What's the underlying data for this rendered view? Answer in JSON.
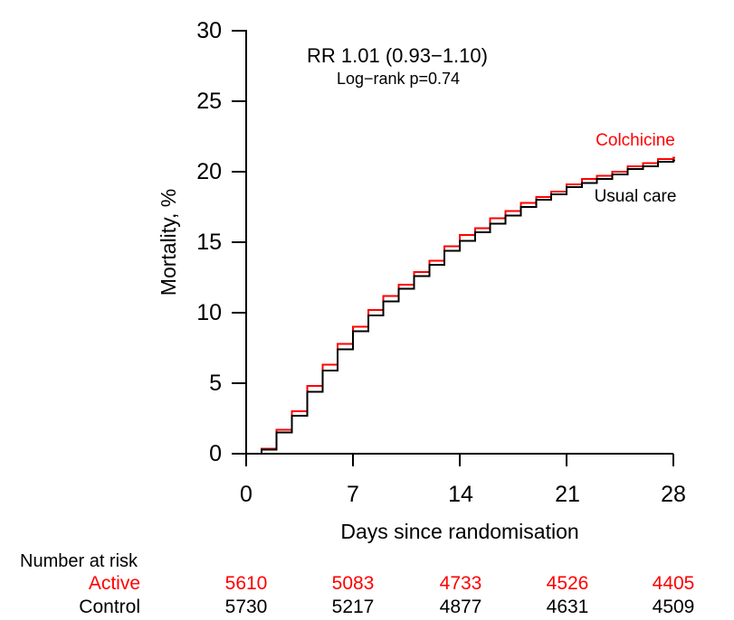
{
  "annotation": {
    "rr": "RR 1.01 (0.93−1.10)",
    "logrank": "Log−rank p=0.74"
  },
  "axis": {
    "x_title": "Days since randomisation",
    "y_title": "Mortality, %"
  },
  "x_tick_labels": [
    "0",
    "7",
    "14",
    "21",
    "28"
  ],
  "y_tick_labels": [
    "30",
    "25",
    "20",
    "15",
    "10",
    "5",
    "0"
  ],
  "curve_labels": {
    "colchicine": "Colchicine",
    "usual_care": "Usual care"
  },
  "colors": {
    "colchicine": "#ff0000",
    "usual_care": "#000000",
    "axis": "#000000"
  },
  "risk_table": {
    "title": "Number at risk",
    "rows": [
      {
        "label": "Active",
        "color": "#ff0000",
        "values": [
          "5610",
          "5083",
          "4733",
          "4526",
          "4405"
        ]
      },
      {
        "label": "Control",
        "color": "#000000",
        "values": [
          "5730",
          "5217",
          "4877",
          "4631",
          "4509"
        ]
      }
    ]
  },
  "chart_data": {
    "type": "line",
    "subtype": "step",
    "title": "",
    "xlabel": "Days since randomisation",
    "ylabel": "Mortality, %",
    "xlim": [
      0,
      28
    ],
    "ylim": [
      0,
      30
    ],
    "x_ticks": [
      0,
      7,
      14,
      21,
      28
    ],
    "y_ticks": [
      0,
      5,
      10,
      15,
      20,
      25,
      30
    ],
    "grid": false,
    "annotations": [
      "RR 1.01 (0.93−1.10)",
      "Log−rank p=0.74"
    ],
    "x": [
      0,
      1,
      2,
      3,
      4,
      5,
      6,
      7,
      8,
      9,
      10,
      11,
      12,
      13,
      14,
      15,
      16,
      17,
      18,
      19,
      20,
      21,
      22,
      23,
      24,
      25,
      26,
      27,
      28
    ],
    "series": [
      {
        "name": "Colchicine",
        "color": "#ff0000",
        "values": [
          0,
          0.35,
          1.7,
          3.0,
          4.8,
          6.3,
          7.8,
          9.0,
          10.2,
          11.2,
          12.0,
          12.9,
          13.7,
          14.7,
          15.5,
          16.0,
          16.7,
          17.2,
          17.8,
          18.2,
          18.6,
          19.1,
          19.5,
          19.7,
          20.0,
          20.4,
          20.6,
          20.9,
          21.0
        ]
      },
      {
        "name": "Usual care",
        "color": "#000000",
        "values": [
          0,
          0.3,
          1.5,
          2.7,
          4.4,
          5.9,
          7.4,
          8.7,
          9.8,
          10.8,
          11.7,
          12.6,
          13.4,
          14.4,
          15.1,
          15.7,
          16.3,
          16.9,
          17.5,
          18.0,
          18.4,
          18.9,
          19.2,
          19.5,
          19.8,
          20.2,
          20.4,
          20.7,
          20.8
        ]
      }
    ],
    "number_at_risk": {
      "times": [
        0,
        7,
        14,
        21,
        28
      ],
      "Active": [
        5610,
        5083,
        4733,
        4526,
        4405
      ],
      "Control": [
        5730,
        5217,
        4877,
        4631,
        4509
      ]
    }
  }
}
